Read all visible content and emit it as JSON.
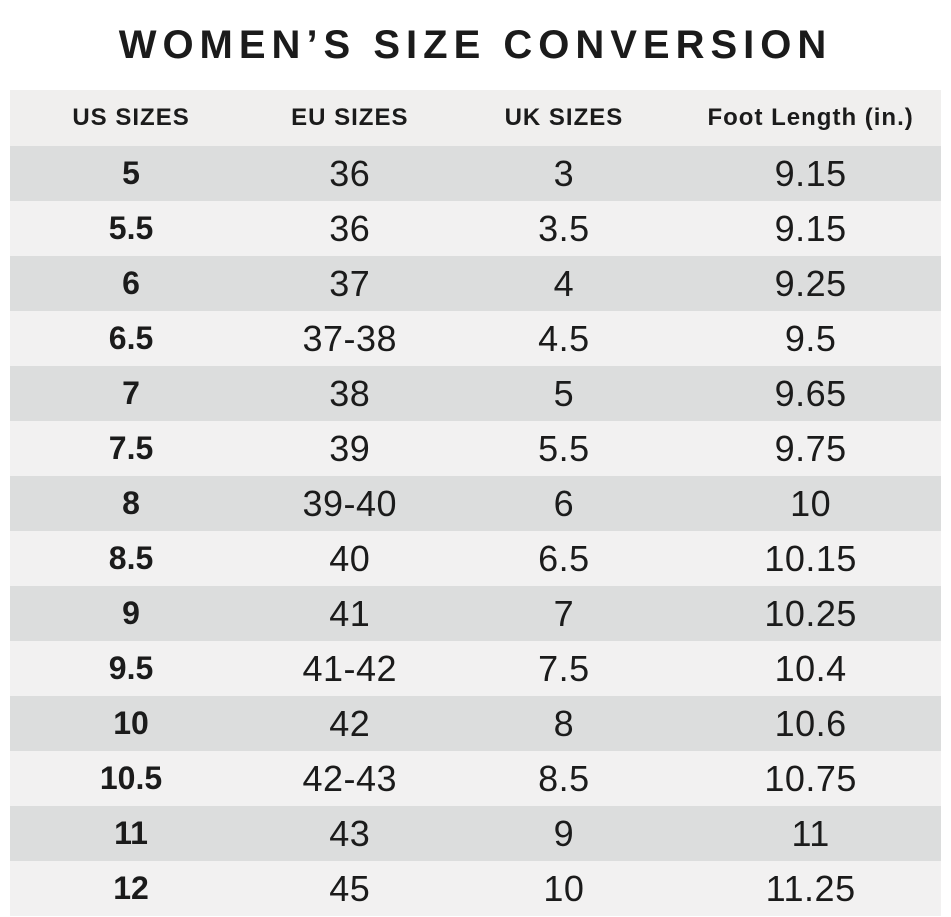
{
  "page": {
    "title": "WOMEN’S SIZE CONVERSION"
  },
  "colors": {
    "page_bg": "#ffffff",
    "text": "#1b1b1b",
    "header_bg": "#f0efee",
    "row_dark": "#dcdddd",
    "row_light": "#f2f1f1"
  },
  "chart_data": {
    "type": "table",
    "title": "WOMEN’S SIZE CONVERSION",
    "columns": [
      "US SIZES",
      "EU SIZES",
      "UK SIZES",
      "Foot Length (in.)"
    ],
    "rows": [
      [
        "5",
        "36",
        "3",
        "9.15"
      ],
      [
        "5.5",
        "36",
        "3.5",
        "9.15"
      ],
      [
        "6",
        "37",
        "4",
        "9.25"
      ],
      [
        "6.5",
        "37-38",
        "4.5",
        "9.5"
      ],
      [
        "7",
        "38",
        "5",
        "9.65"
      ],
      [
        "7.5",
        "39",
        "5.5",
        "9.75"
      ],
      [
        "8",
        "39-40",
        "6",
        "10"
      ],
      [
        "8.5",
        "40",
        "6.5",
        "10.15"
      ],
      [
        "9",
        "41",
        "7",
        "10.25"
      ],
      [
        "9.5",
        "41-42",
        "7.5",
        "10.4"
      ],
      [
        "10",
        "42",
        "8",
        "10.6"
      ],
      [
        "10.5",
        "42-43",
        "8.5",
        "10.75"
      ],
      [
        "11",
        "43",
        "9",
        "11"
      ],
      [
        "12",
        "45",
        "10",
        "11.25"
      ]
    ],
    "layout": {
      "alignment": "center",
      "striping": "first data row dark gray, alternating with light gray",
      "bold_column": "US SIZES"
    }
  }
}
